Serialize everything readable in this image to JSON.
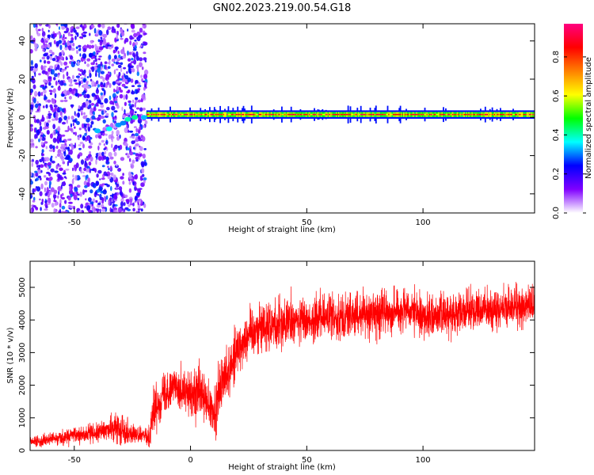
{
  "chart_data": [
    {
      "type": "heatmap",
      "title": "GN02.2023.219.00.54.G18",
      "xlabel": "Height of straight line (km)",
      "ylabel": "Frequency (Hz)",
      "xlim": [
        -69,
        148
      ],
      "ylim": [
        -50,
        49
      ],
      "xticks": [
        -50,
        0,
        50,
        100
      ],
      "xtick_labels": [
        "-50",
        "0",
        "50",
        "100"
      ],
      "yticks": [
        -40,
        -20,
        0,
        20,
        40
      ],
      "ytick_labels": [
        "-40",
        "-20",
        "0",
        "20",
        "40"
      ],
      "grid": false,
      "colorbar": {
        "label": "Normalized spectral amplitude",
        "range": [
          0,
          0.97
        ],
        "ticks": [
          0,
          0.2,
          0.4,
          0.6,
          0.8
        ],
        "tick_labels": [
          "0.0",
          "0.2",
          "0.4",
          "0.6",
          "0.8"
        ],
        "colormap": [
          "#ffffff",
          "#8000ff",
          "#0000ff",
          "#00ffff",
          "#00ff00",
          "#ffff00",
          "#ff8000",
          "#ff0000",
          "#ff0080"
        ]
      },
      "noise_region": {
        "x_range": [
          -69,
          -19
        ],
        "frequency_range": [
          -50,
          49
        ],
        "level_range": [
          0.05,
          0.3
        ]
      },
      "main_line": {
        "frequency": 1.5,
        "x_range": [
          -19,
          148
        ],
        "peak_level": 0.95
      },
      "line_segment": {
        "x": [
          -40,
          -35,
          -31,
          -29,
          -27,
          -24,
          -20
        ],
        "y": [
          -7,
          -6,
          -4,
          -3,
          -1,
          0,
          0
        ]
      }
    },
    {
      "type": "line",
      "xlabel": "Height of straight line (km)",
      "ylabel": "SNR (10 * v/v)",
      "xlim": [
        -69,
        148
      ],
      "ylim": [
        0,
        5800
      ],
      "xticks": [
        -50,
        0,
        50,
        100
      ],
      "xtick_labels": [
        "-50",
        "0",
        "50",
        "100"
      ],
      "yticks": [
        0,
        1000,
        2000,
        3000,
        4000,
        5000
      ],
      "ytick_labels": [
        "0",
        "1000",
        "2000",
        "3000",
        "4000",
        "5000"
      ],
      "grid": false,
      "color": "#ff0000",
      "trend": {
        "x": [
          -69,
          -60,
          -50,
          -40,
          -35,
          -30,
          -25,
          -20,
          -18,
          -16,
          -12,
          -8,
          -4,
          0,
          4,
          8,
          10,
          12,
          15,
          18,
          20,
          25,
          30,
          40,
          50,
          60,
          70,
          80,
          90,
          100,
          110,
          120,
          130,
          140,
          148
        ],
        "y": [
          250,
          350,
          450,
          550,
          650,
          700,
          500,
          450,
          400,
          1200,
          1700,
          2000,
          1900,
          1600,
          1800,
          1300,
          1000,
          1700,
          2300,
          2700,
          3100,
          3600,
          3800,
          3900,
          4000,
          4100,
          4150,
          4200,
          4300,
          4100,
          4200,
          4300,
          4300,
          4400,
          4400
        ]
      },
      "noise_amplitude": [
        [
          -69,
          160
        ],
        [
          -35,
          300
        ],
        [
          -30,
          500
        ],
        [
          -20,
          150
        ],
        [
          -16,
          600
        ],
        [
          0,
          700
        ],
        [
          10,
          900
        ],
        [
          20,
          800
        ],
        [
          50,
          700
        ],
        [
          148,
          600
        ]
      ]
    }
  ]
}
